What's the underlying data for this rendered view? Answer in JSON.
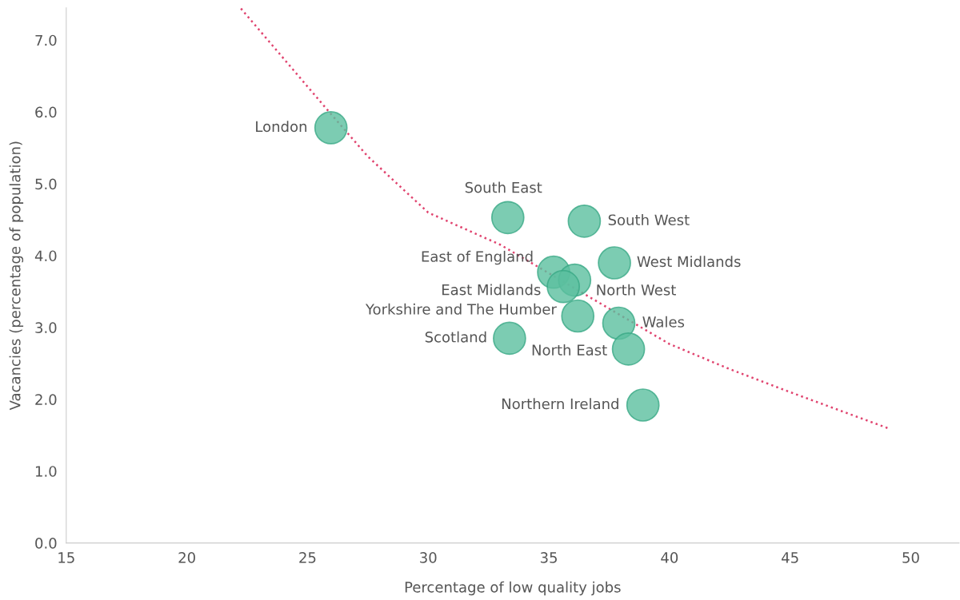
{
  "chart_data": {
    "type": "scatter",
    "xlabel": "Percentage of low quality jobs",
    "ylabel": "Vacancies (percentage of population)",
    "xlim": [
      15,
      52
    ],
    "ylim": [
      0,
      7.45
    ],
    "xticks": [
      15,
      20,
      25,
      30,
      35,
      40,
      45,
      50
    ],
    "yticks": [
      {
        "value": 0,
        "label": "0.0"
      },
      {
        "value": 1,
        "label": "1.0"
      },
      {
        "value": 2,
        "label": "2.0"
      },
      {
        "value": 3,
        "label": "3.0"
      },
      {
        "value": 4,
        "label": "4.0"
      },
      {
        "value": 5,
        "label": "5.0"
      },
      {
        "value": 6,
        "label": "6.0"
      },
      {
        "value": 7,
        "label": "7.0"
      }
    ],
    "grid": false,
    "legend": false,
    "series": [
      {
        "color": "#5bbf9f",
        "marker": "circle",
        "x": [
          25.97,
          33.3,
          36.47,
          37.72,
          35.2,
          36.07,
          35.6,
          36.2,
          37.9,
          33.37,
          38.3,
          38.9
        ],
        "values": [
          5.78,
          4.53,
          4.48,
          3.9,
          3.77,
          3.66,
          3.57,
          3.16,
          3.06,
          2.85,
          2.7,
          1.92
        ]
      },
      {
        "type": "line",
        "color": "#e0446f",
        "line_style": "dotted",
        "marker": "none",
        "x": [
          22.24,
          25.77,
          27.5,
          30,
          33,
          40,
          42.5,
          45,
          49.04
        ],
        "values": [
          7.44,
          6.05,
          5.38,
          4.6,
          4.15,
          2.77,
          2.42,
          2.1,
          1.6
        ]
      }
    ],
    "annotations": [
      {
        "text": "London",
        "x": 25.97,
        "y": 5.78
      },
      {
        "text": "South East",
        "x": 33.3,
        "y": 4.53
      },
      {
        "text": "South West",
        "x": 36.47,
        "y": 4.48
      },
      {
        "text": "West Midlands",
        "x": 37.72,
        "y": 3.9
      },
      {
        "text": "East of England",
        "x": 35.2,
        "y": 3.77
      },
      {
        "text": "North West",
        "x": 36.07,
        "y": 3.66
      },
      {
        "text": "East Midlands",
        "x": 35.6,
        "y": 3.57
      },
      {
        "text": "Yorkshire and The Humber",
        "x": 36.2,
        "y": 3.16
      },
      {
        "text": "Wales",
        "x": 37.9,
        "y": 3.06
      },
      {
        "text": "Scotland",
        "x": 33.37,
        "y": 2.85
      },
      {
        "text": "North East",
        "x": 38.3,
        "y": 2.7
      },
      {
        "text": "Northern Ireland",
        "x": 38.9,
        "y": 1.92
      }
    ]
  }
}
